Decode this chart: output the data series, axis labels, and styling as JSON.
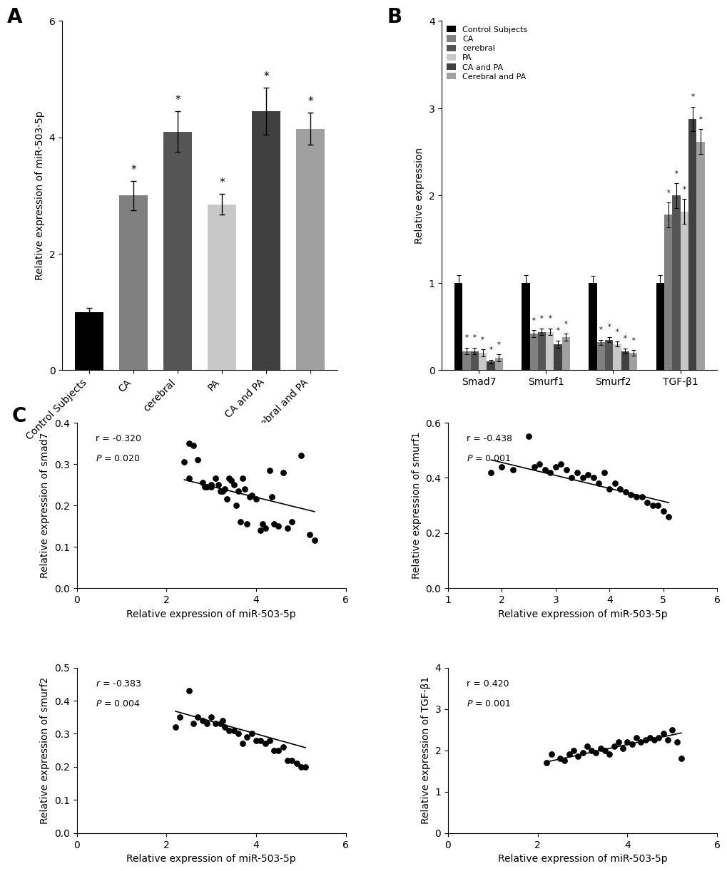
{
  "panel_A": {
    "categories": [
      "Control Subjects",
      "CA",
      "cerebral",
      "PA",
      "CA and PA",
      "Cerebral and PA"
    ],
    "values": [
      1.0,
      3.0,
      4.1,
      2.85,
      4.45,
      4.15
    ],
    "errors": [
      0.07,
      0.25,
      0.35,
      0.18,
      0.4,
      0.28
    ],
    "colors": [
      "#000000",
      "#808080",
      "#555555",
      "#c8c8c8",
      "#404040",
      "#a0a0a0"
    ],
    "ylabel": "Relative expression of miR-503-5p",
    "ylim": [
      0,
      6
    ],
    "yticks": [
      0,
      2,
      4,
      6
    ],
    "significance": [
      false,
      true,
      true,
      true,
      true,
      true
    ]
  },
  "panel_B": {
    "groups": [
      "Smad7",
      "Smurf1",
      "Smurf2",
      "TGF-β1"
    ],
    "legend_labels": [
      "Control Subjects",
      "CA",
      "cerebral",
      "PA",
      "CA and PA",
      "Cerebral and PA"
    ],
    "legend_colors": [
      "#000000",
      "#808080",
      "#555555",
      "#c8c8c8",
      "#404040",
      "#a0a0a0"
    ],
    "values": {
      "Smad7": [
        1.0,
        0.22,
        0.22,
        0.2,
        0.1,
        0.14
      ],
      "Smurf1": [
        1.0,
        0.42,
        0.44,
        0.44,
        0.3,
        0.38
      ],
      "Smurf2": [
        1.0,
        0.32,
        0.35,
        0.3,
        0.22,
        0.2
      ],
      "TGF-β1": [
        1.0,
        1.78,
        2.0,
        1.82,
        2.88,
        2.62
      ]
    },
    "errors": {
      "Smad7": [
        0.09,
        0.04,
        0.04,
        0.04,
        0.02,
        0.04
      ],
      "Smurf1": [
        0.09,
        0.04,
        0.04,
        0.04,
        0.04,
        0.04
      ],
      "Smurf2": [
        0.08,
        0.03,
        0.03,
        0.03,
        0.03,
        0.03
      ],
      "TGF-β1": [
        0.09,
        0.14,
        0.14,
        0.14,
        0.14,
        0.14
      ]
    },
    "significance": {
      "Smad7": [
        false,
        true,
        true,
        true,
        true,
        true
      ],
      "Smurf1": [
        false,
        true,
        true,
        true,
        true,
        true
      ],
      "Smurf2": [
        false,
        true,
        true,
        true,
        true,
        true
      ],
      "TGF-β1": [
        false,
        true,
        true,
        true,
        true,
        true
      ]
    },
    "ylabel": "Relative expression",
    "ylim": [
      0,
      4
    ],
    "yticks": [
      0,
      1,
      2,
      3,
      4
    ]
  },
  "panel_C": {
    "scatter_plots": [
      {
        "xlabel": "Relative expression of miR-503-5p",
        "ylabel": "Relative expression of smad7",
        "r": -0.32,
        "P": 0.02,
        "r_italic": false,
        "xlim": [
          0,
          6
        ],
        "xticks": [
          0,
          2,
          4,
          6
        ],
        "ylim": [
          0.0,
          0.4
        ],
        "yticks": [
          0.0,
          0.1,
          0.2,
          0.3,
          0.4
        ],
        "x": [
          2.4,
          2.5,
          2.5,
          2.6,
          2.7,
          2.8,
          2.85,
          2.9,
          3.0,
          3.0,
          3.1,
          3.15,
          3.2,
          3.25,
          3.3,
          3.35,
          3.4,
          3.45,
          3.5,
          3.55,
          3.6,
          3.65,
          3.7,
          3.75,
          3.8,
          3.85,
          3.9,
          4.0,
          4.1,
          4.15,
          4.2,
          4.3,
          4.35,
          4.4,
          4.5,
          4.6,
          4.7,
          4.8,
          5.0,
          5.2,
          5.3
        ],
        "y": [
          0.305,
          0.265,
          0.35,
          0.345,
          0.31,
          0.255,
          0.245,
          0.245,
          0.245,
          0.25,
          0.265,
          0.25,
          0.235,
          0.235,
          0.24,
          0.215,
          0.265,
          0.26,
          0.25,
          0.2,
          0.235,
          0.16,
          0.265,
          0.24,
          0.155,
          0.22,
          0.225,
          0.215,
          0.14,
          0.155,
          0.145,
          0.285,
          0.22,
          0.155,
          0.15,
          0.28,
          0.145,
          0.16,
          0.32,
          0.13,
          0.115
        ],
        "line_x": [
          2.4,
          5.3
        ],
        "line_y": [
          0.262,
          0.185
        ]
      },
      {
        "xlabel": "Relative expression of miR-503-5p",
        "ylabel": "Relative expression of smurf1",
        "r": -0.438,
        "P": 0.001,
        "r_italic": false,
        "xlim": [
          1,
          6
        ],
        "xticks": [
          1,
          2,
          3,
          4,
          5,
          6
        ],
        "ylim": [
          0.0,
          0.6
        ],
        "yticks": [
          0.0,
          0.2,
          0.4,
          0.6
        ],
        "x": [
          1.8,
          2.0,
          2.2,
          2.5,
          2.6,
          2.7,
          2.8,
          2.9,
          3.0,
          3.1,
          3.2,
          3.3,
          3.4,
          3.5,
          3.6,
          3.7,
          3.8,
          3.9,
          4.0,
          4.1,
          4.2,
          4.3,
          4.4,
          4.5,
          4.6,
          4.7,
          4.8,
          4.9,
          5.0,
          5.1
        ],
        "y": [
          0.42,
          0.44,
          0.43,
          0.55,
          0.44,
          0.45,
          0.43,
          0.42,
          0.44,
          0.45,
          0.43,
          0.4,
          0.42,
          0.4,
          0.41,
          0.4,
          0.38,
          0.42,
          0.36,
          0.38,
          0.36,
          0.35,
          0.34,
          0.33,
          0.33,
          0.31,
          0.3,
          0.3,
          0.28,
          0.26
        ],
        "line_x": [
          1.8,
          5.1
        ],
        "line_y": [
          0.465,
          0.31
        ]
      },
      {
        "xlabel": "Relative expression of miR-503-5p",
        "ylabel": "Relative expression of smurf2",
        "r": -0.383,
        "P": 0.004,
        "r_italic": true,
        "xlim": [
          0,
          6
        ],
        "xticks": [
          0,
          2,
          4,
          6
        ],
        "ylim": [
          0.0,
          0.5
        ],
        "yticks": [
          0.0,
          0.1,
          0.2,
          0.3,
          0.4,
          0.5
        ],
        "x": [
          2.2,
          2.3,
          2.5,
          2.6,
          2.7,
          2.8,
          2.9,
          3.0,
          3.1,
          3.2,
          3.25,
          3.3,
          3.4,
          3.5,
          3.6,
          3.7,
          3.8,
          3.9,
          4.0,
          4.1,
          4.2,
          4.3,
          4.4,
          4.5,
          4.6,
          4.7,
          4.8,
          4.9,
          5.0,
          5.1
        ],
        "y": [
          0.32,
          0.35,
          0.43,
          0.33,
          0.35,
          0.34,
          0.33,
          0.35,
          0.33,
          0.33,
          0.34,
          0.32,
          0.31,
          0.31,
          0.3,
          0.27,
          0.29,
          0.3,
          0.28,
          0.28,
          0.27,
          0.28,
          0.25,
          0.25,
          0.26,
          0.22,
          0.22,
          0.21,
          0.2,
          0.2
        ],
        "line_x": [
          2.2,
          5.1
        ],
        "line_y": [
          0.368,
          0.258
        ]
      },
      {
        "xlabel": "Relative expression of miR-503-5p",
        "ylabel": "Relative expression of TGF-β1",
        "r": 0.42,
        "P": 0.001,
        "r_italic": false,
        "xlim": [
          0,
          6
        ],
        "xticks": [
          0,
          2,
          4,
          6
        ],
        "ylim": [
          0,
          4
        ],
        "yticks": [
          0,
          1,
          2,
          3,
          4
        ],
        "x": [
          2.2,
          2.3,
          2.5,
          2.6,
          2.7,
          2.8,
          2.9,
          3.0,
          3.1,
          3.2,
          3.3,
          3.4,
          3.5,
          3.6,
          3.7,
          3.8,
          3.9,
          4.0,
          4.1,
          4.2,
          4.3,
          4.4,
          4.5,
          4.6,
          4.7,
          4.8,
          4.9,
          5.0,
          5.1,
          5.2
        ],
        "y": [
          1.7,
          1.9,
          1.8,
          1.75,
          1.9,
          2.0,
          1.85,
          1.95,
          2.1,
          2.0,
          1.95,
          2.05,
          2.0,
          1.9,
          2.1,
          2.2,
          2.05,
          2.2,
          2.15,
          2.3,
          2.2,
          2.25,
          2.3,
          2.25,
          2.3,
          2.4,
          2.25,
          2.5,
          2.2,
          1.8
        ],
        "line_x": [
          2.2,
          5.2
        ],
        "line_y": [
          1.72,
          2.42
        ]
      }
    ]
  },
  "label_fontsize": 20,
  "axis_fontsize": 10,
  "tick_fontsize": 10,
  "star_fontsize": 11
}
